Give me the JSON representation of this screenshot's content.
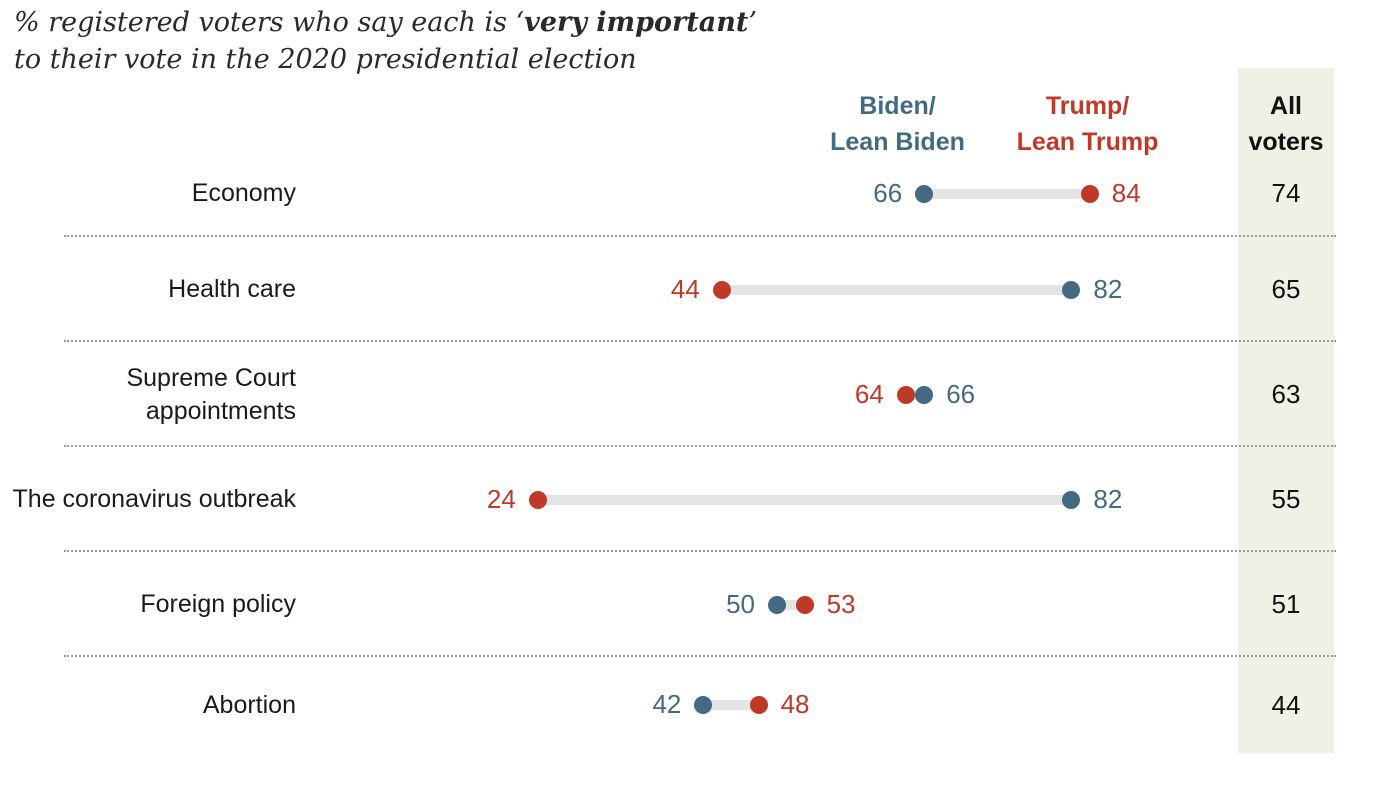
{
  "title": {
    "line1_prefix": "% registered voters who say each is ‘",
    "line1_bold": "very important",
    "line1_suffix": "’",
    "line2": "to their vote in the 2020 presidential election"
  },
  "headers": {
    "biden": "Biden/\nLean Biden",
    "trump": "Trump/\nLean Trump",
    "all_voters": "All\nvoters"
  },
  "chart_data": {
    "type": "scatter",
    "subtype": "dumbbell-dot-plot",
    "title": "% registered voters who say each is 'very important' to their vote in the 2020 presidential election",
    "series": [
      "Biden/Lean Biden",
      "Trump/Lean Trump",
      "All voters"
    ],
    "x_range": [
      0,
      100
    ],
    "legend_position": "top",
    "grid": false,
    "rows": [
      {
        "label": "Economy",
        "biden": 66,
        "trump": 84,
        "all_voters": 74
      },
      {
        "label": "Health care",
        "biden": 82,
        "trump": 44,
        "all_voters": 65
      },
      {
        "label": "Supreme Court appointments",
        "biden": 66,
        "trump": 64,
        "all_voters": 63
      },
      {
        "label": "The coronavirus outbreak",
        "biden": 82,
        "trump": 24,
        "all_voters": 55
      },
      {
        "label": "Foreign policy",
        "biden": 50,
        "trump": 53,
        "all_voters": 51
      },
      {
        "label": "Abortion",
        "biden": 42,
        "trump": 48,
        "all_voters": 44
      }
    ],
    "colors": {
      "biden": "#436983",
      "trump": "#bf3927",
      "connector": "#e4e4e4",
      "all_voters_bg": "#f0f0e6"
    }
  }
}
